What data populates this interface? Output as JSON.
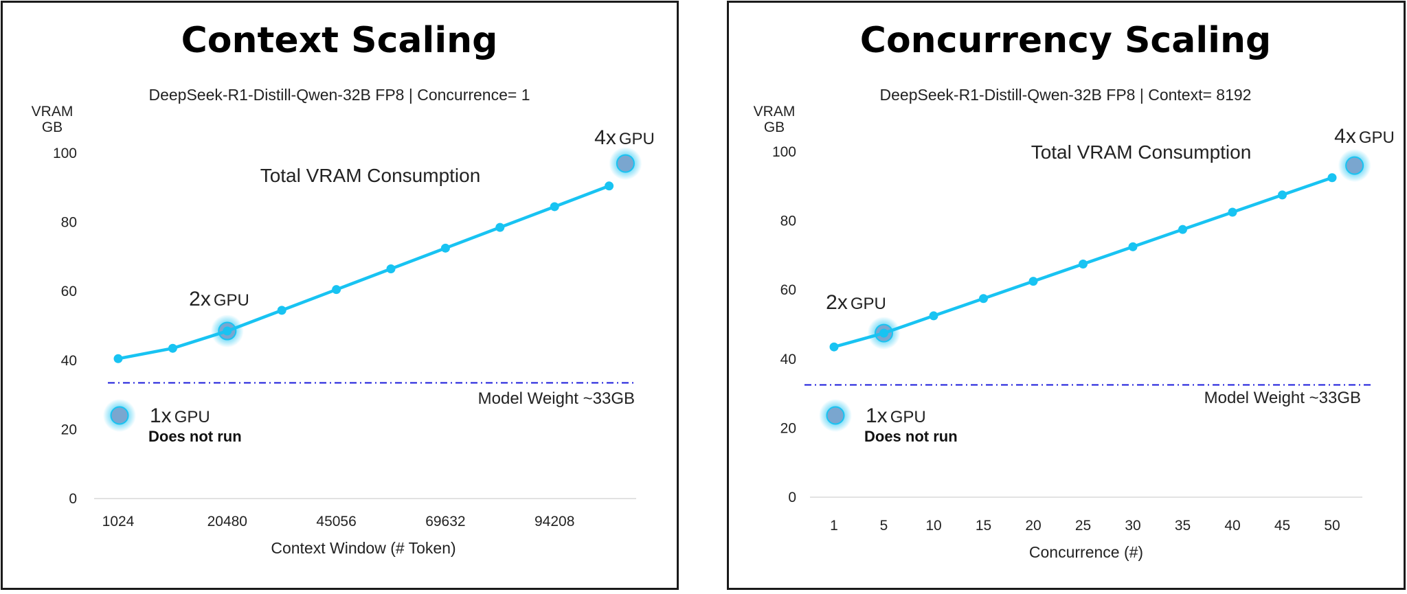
{
  "chart_data": [
    {
      "type": "line",
      "title": "Context Scaling",
      "subtitle": "DeepSeek-R1-Distill-Qwen-32B FP8  | Concurrence= 1",
      "ylabel_line1": "VRAM",
      "ylabel_line2": "GB",
      "xlabel": "Context Window (# Token)",
      "series_label": "Total VRAM Consumption",
      "ylim": [
        0,
        100
      ],
      "yticks": [
        0,
        20,
        40,
        60,
        80,
        100
      ],
      "categories": [
        "1024",
        "",
        "20480",
        "",
        "45056",
        "",
        "69632",
        "",
        "94208",
        ""
      ],
      "values": [
        40.5,
        43.5,
        48.5,
        54.5,
        60.5,
        66.5,
        72.5,
        78.5,
        84.5,
        90.5
      ],
      "reference_line": {
        "value": 33.5,
        "label": "Model Weight ~33GB",
        "color": "#1a1adb"
      },
      "markers": [
        {
          "num": "2x",
          "text": "GPU",
          "at_index": 2,
          "y": 48.5
        },
        {
          "num": "4x",
          "text": "GPU",
          "at_index": 9.3,
          "y": 97
        }
      ],
      "legend_note": {
        "num": "1x",
        "text": "GPU",
        "note": "Does not run"
      },
      "line_color": "#18c3f2"
    },
    {
      "type": "line",
      "title": "Concurrency Scaling",
      "subtitle": "DeepSeek-R1-Distill-Qwen-32B FP8  | Context= 8192",
      "ylabel_line1": "VRAM",
      "ylabel_line2": "GB",
      "xlabel": "Concurrence (#)",
      "series_label": "Total VRAM Consumption",
      "ylim": [
        0,
        100
      ],
      "yticks": [
        0,
        20,
        40,
        60,
        80,
        100
      ],
      "categories": [
        "1",
        "5",
        "10",
        "15",
        "20",
        "25",
        "30",
        "35",
        "40",
        "45",
        "50"
      ],
      "values": [
        43.5,
        47.5,
        52.5,
        57.5,
        62.5,
        67.5,
        72.5,
        77.5,
        82.5,
        87.5,
        92.5
      ],
      "reference_line": {
        "value": 32.5,
        "label": "Model Weight ~33GB",
        "color": "#1a1adb"
      },
      "markers": [
        {
          "num": "2x",
          "text": "GPU",
          "at_index": 1,
          "y": 47.5
        },
        {
          "num": "4x",
          "text": "GPU",
          "at_index": 10.45,
          "y": 96
        }
      ],
      "legend_note": {
        "num": "1x",
        "text": "GPU",
        "note": "Does not run"
      },
      "line_color": "#18c3f2"
    }
  ]
}
